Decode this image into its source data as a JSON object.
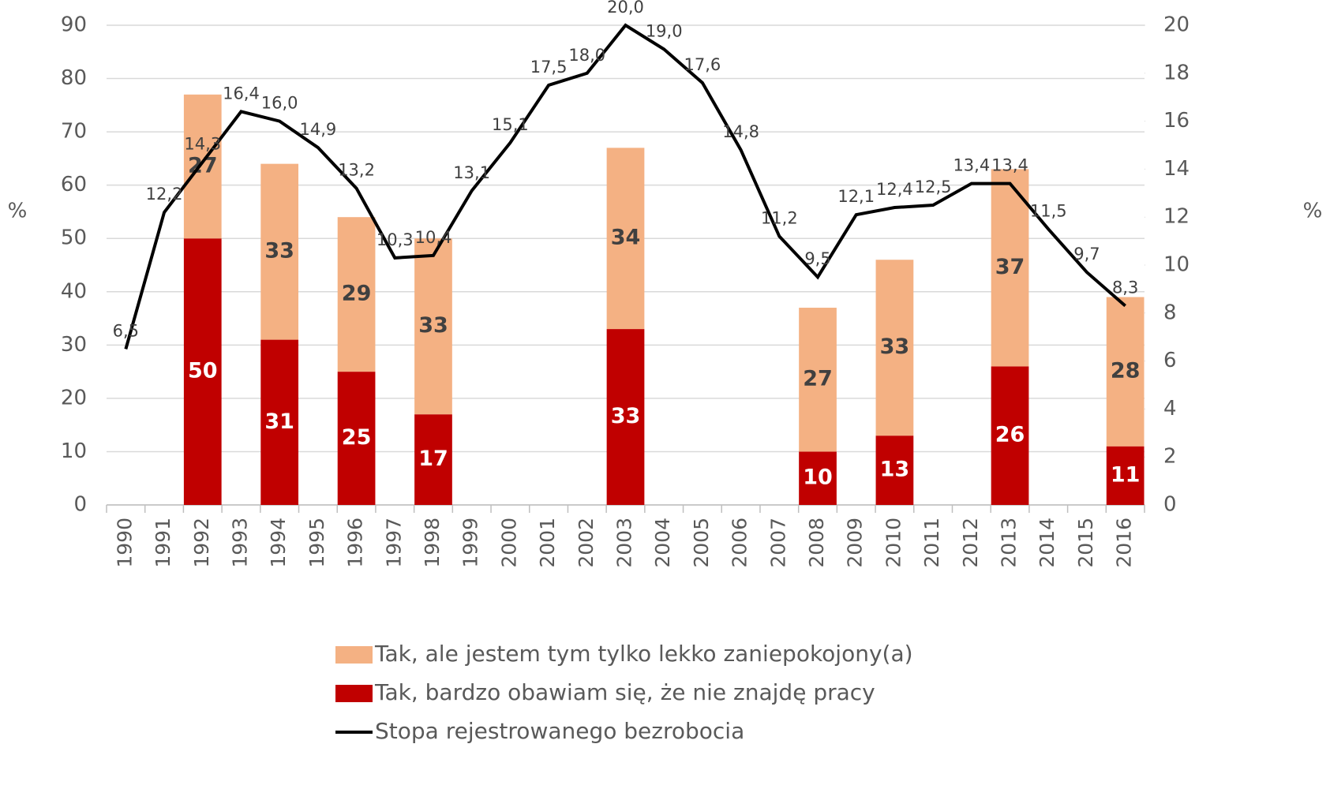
{
  "chart_data": {
    "type": "bar",
    "stacked": true,
    "categories": [
      "1990",
      "1991",
      "1992",
      "1993",
      "1994",
      "1995",
      "1996",
      "1997",
      "1998",
      "1999",
      "2000",
      "2001",
      "2002",
      "2003",
      "2004",
      "2005",
      "2006",
      "2007",
      "2008",
      "2009",
      "2010",
      "2011",
      "2012",
      "2013",
      "2014",
      "2015",
      "2016"
    ],
    "series": [
      {
        "name": "Tak, bardzo obawiam się, że nie znajdę pracy",
        "color": "#c00000",
        "type": "bar",
        "values": [
          null,
          null,
          50,
          null,
          31,
          null,
          25,
          null,
          17,
          null,
          null,
          null,
          null,
          33,
          null,
          null,
          null,
          null,
          10,
          null,
          13,
          null,
          null,
          26,
          null,
          null,
          11
        ]
      },
      {
        "name": "Tak, ale jestem tym tylko lekko zaniepokojony(a)",
        "color": "#f4b183",
        "type": "bar",
        "values": [
          null,
          null,
          27,
          null,
          33,
          null,
          29,
          null,
          33,
          null,
          null,
          null,
          null,
          34,
          null,
          null,
          null,
          null,
          27,
          null,
          33,
          null,
          null,
          37,
          null,
          null,
          28
        ]
      },
      {
        "name": "Stopa rejestrowanego bezrobocia",
        "color": "#000000",
        "type": "line",
        "axis": "y2",
        "values": [
          6.5,
          12.2,
          14.3,
          16.4,
          16.0,
          14.9,
          13.2,
          10.3,
          10.4,
          13.1,
          15.1,
          17.5,
          18.0,
          20.0,
          19.0,
          17.6,
          14.8,
          11.2,
          9.5,
          12.1,
          12.4,
          12.5,
          13.4,
          13.4,
          11.5,
          9.7,
          8.3
        ],
        "value_labels": [
          "6,5",
          "12,2",
          "14,3",
          "16,4",
          "16,0",
          "14,9",
          "13,2",
          "10,3",
          "10,4",
          "13,1",
          "15,1",
          "17,5",
          "18,0",
          "20,0",
          "19,0",
          "17,6",
          "14,8",
          "11,2",
          "9,5",
          "12,1",
          "12,4",
          "12,5",
          "13,4",
          "13,4",
          "11,5",
          "9,7",
          "8,3"
        ]
      }
    ],
    "ylabel": "%",
    "y2label": "%",
    "ylim": [
      0,
      90
    ],
    "yticks": [
      0,
      10,
      20,
      30,
      40,
      50,
      60,
      70,
      80,
      90
    ],
    "y2lim": [
      0,
      20
    ],
    "y2ticks": [
      0,
      2,
      4,
      6,
      8,
      10,
      12,
      14,
      16,
      18,
      20
    ],
    "grid": true
  }
}
